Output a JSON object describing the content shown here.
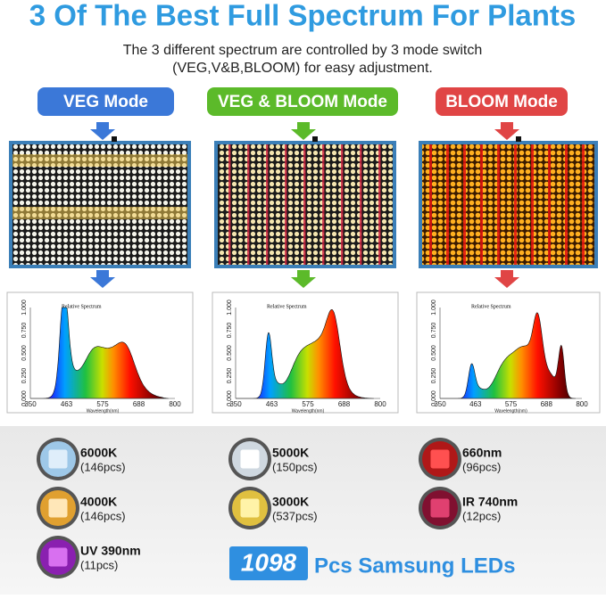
{
  "header": {
    "title": "3 Of The Best Full Spectrum For Plants",
    "subtitle_lines": [
      "The 3 different spectrum are controlled by 3 mode switch",
      "(VEG,V&B,BLOOM) for easy adjustment."
    ]
  },
  "modes": [
    {
      "label": "VEG Mode",
      "spectrum": {
        "title": "Relative Spectrum",
        "x_label": "Wavelength(nm)",
        "x_ticks": [
          "350",
          "463",
          "575",
          "688",
          "800"
        ],
        "y_ticks": [
          "0.000",
          "0.250",
          "0.500",
          "0.750",
          "1.000"
        ]
      }
    },
    {
      "label": "VEG & BLOOM Mode",
      "spectrum": {
        "title": "Relative Spectrum",
        "x_label": "Wavelength(nm)",
        "x_ticks": [
          "350",
          "463",
          "575",
          "688",
          "800"
        ],
        "y_ticks": [
          "0.000",
          "0.250",
          "0.500",
          "0.750",
          "1.000"
        ]
      }
    },
    {
      "label": "BLOOM Mode",
      "spectrum": {
        "title": "Relative Spectrum",
        "x_label": "Wavelength(nm)",
        "x_ticks": [
          "350",
          "463",
          "575",
          "688",
          "800"
        ],
        "y_ticks": [
          "0.000",
          "0.250",
          "0.500",
          "0.750",
          "1.000"
        ]
      }
    }
  ],
  "leds": [
    {
      "name": "6000K",
      "count": "(146pcs)"
    },
    {
      "name": "5000K",
      "count": "(150pcs)"
    },
    {
      "name": "660nm",
      "count": "(96pcs)"
    },
    {
      "name": "4000K",
      "count": "(146pcs)"
    },
    {
      "name": "3000K",
      "count": "(537pcs)"
    },
    {
      "name": "IR 740nm",
      "count": "(12pcs)"
    },
    {
      "name": "UV 390nm",
      "count": "(11pcs)"
    }
  ],
  "total": {
    "number": "1098",
    "label": "Pcs Samsung LEDs"
  }
}
